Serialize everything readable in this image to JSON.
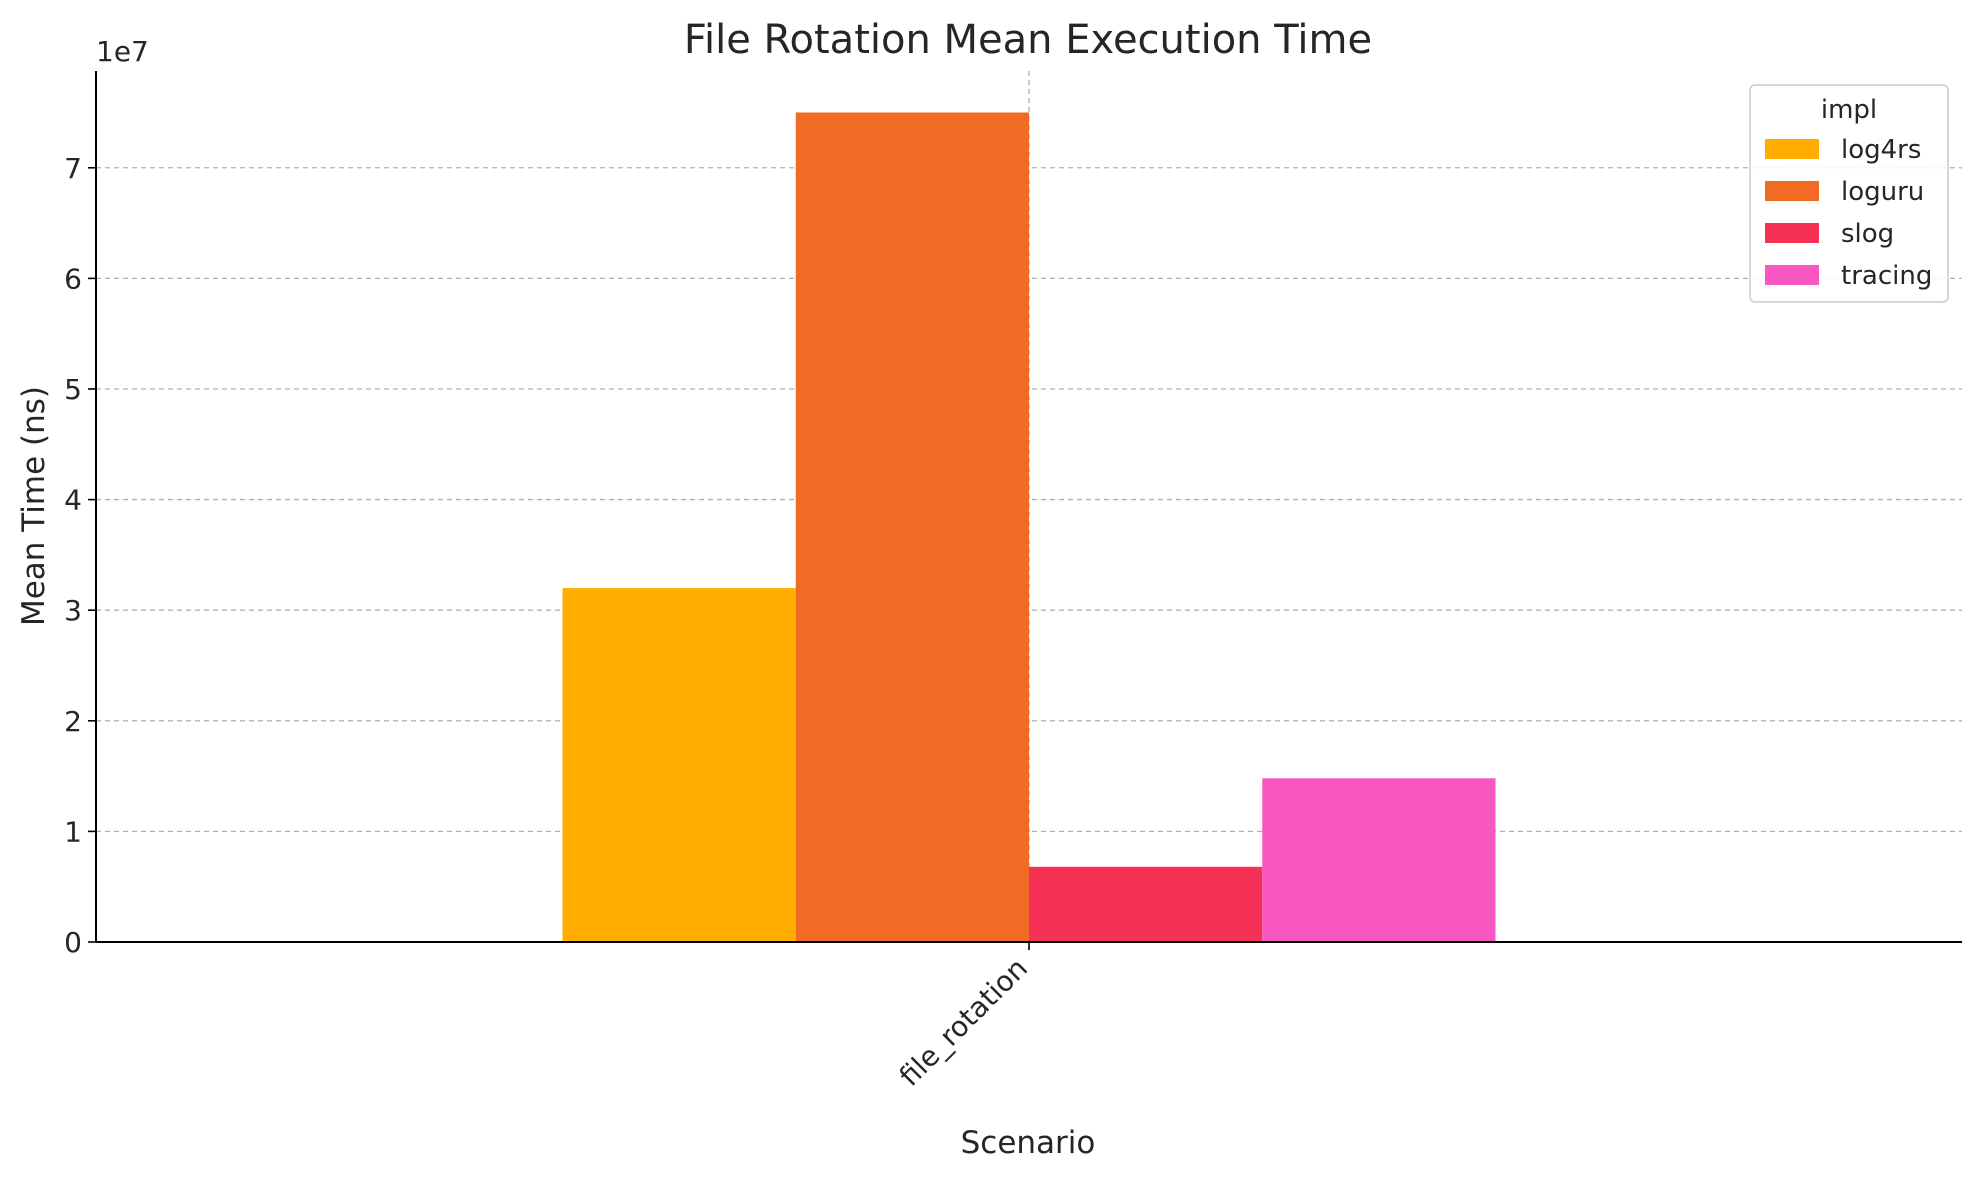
{
  "chart_data": {
    "type": "bar",
    "title": "File Rotation Mean Execution Time",
    "xlabel": "Scenario",
    "ylabel": "Mean Time (ns)",
    "y_offset_label": "1e7",
    "categories": [
      "file_rotation"
    ],
    "ylim": [
      0,
      78750000.0
    ],
    "y_ticks": [
      0,
      10000000,
      20000000,
      30000000,
      40000000,
      50000000,
      60000000,
      70000000
    ],
    "y_tick_labels": [
      "0",
      "1",
      "2",
      "3",
      "4",
      "5",
      "6",
      "7"
    ],
    "legend_title": "impl",
    "legend_position": "top-right",
    "grid": true,
    "series": [
      {
        "name": "log4rs",
        "color": "#FFAE00",
        "values": [
          32000000
        ]
      },
      {
        "name": "loguru",
        "color": "#F26B24",
        "values": [
          75000000
        ]
      },
      {
        "name": "slog",
        "color": "#F53256",
        "values": [
          6800000
        ]
      },
      {
        "name": "tracing",
        "color": "#F857C1",
        "values": [
          14800000
        ]
      }
    ]
  }
}
